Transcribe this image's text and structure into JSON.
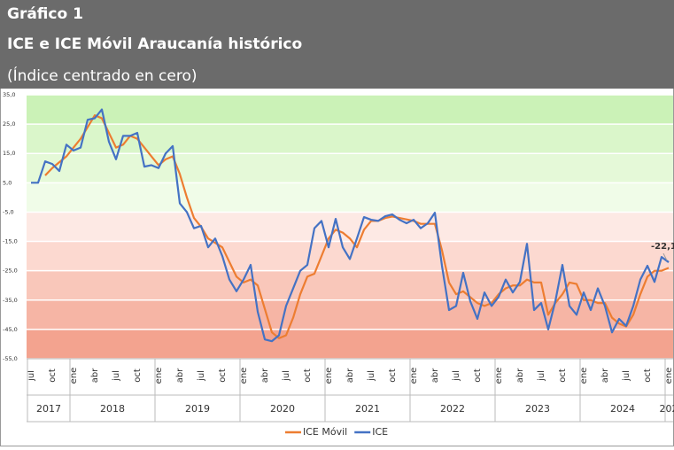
{
  "chart_data": {
    "type": "line",
    "title": "Gráfico 1",
    "subtitle": "ICE e ICE Móvil Araucanía histórico",
    "note": "(Índice centrado en cero)",
    "categories": [
      "jul",
      null,
      null,
      "oct",
      null,
      null,
      "ene",
      null,
      null,
      "abr",
      null,
      null,
      "jul",
      null,
      null,
      "oct",
      null,
      null,
      "ene",
      null,
      null,
      "abr",
      null,
      null,
      "jul",
      null,
      null,
      "oct",
      null,
      null,
      "ene",
      null,
      null,
      "abr",
      null,
      null,
      "jul",
      null,
      null,
      "oct",
      null,
      null,
      "ene",
      null,
      null,
      "abr",
      null,
      null,
      "jul",
      null,
      null,
      "oct",
      null,
      null,
      "ene",
      null,
      null,
      "abr",
      null,
      null,
      "jul",
      null,
      null,
      "oct",
      null,
      null,
      "ene",
      null,
      null,
      "abr",
      null,
      null,
      "jul",
      null,
      null,
      "oct",
      null,
      null,
      "ene",
      null,
      null,
      "abr",
      null,
      null,
      "jul",
      null,
      null,
      "oct",
      null,
      null,
      "ene"
    ],
    "years": [
      "2017",
      "2018",
      "2019",
      "2020",
      "2021",
      "2022",
      "2023",
      "2024",
      "202"
    ],
    "series": [
      {
        "name": "ICE Móvil",
        "color": "#ed7d31",
        "values": [
          null,
          null,
          7.5,
          10,
          12,
          14,
          17,
          20,
          24,
          28,
          27,
          22,
          17,
          18,
          21,
          20,
          17,
          14,
          11,
          13,
          14,
          8,
          0,
          -7,
          -10,
          -14,
          -15.5,
          -17,
          -22,
          -27,
          -29,
          -28,
          -30,
          -38,
          -46,
          -48,
          -47,
          -41,
          -33,
          -27,
          -26,
          -20,
          -14,
          -11,
          -12,
          -14,
          -17,
          -11,
          -8,
          -8,
          -7,
          -6.5,
          -7,
          -7.5,
          -8,
          -9,
          -9,
          -9,
          -18,
          -29,
          -33,
          -32,
          -34,
          -36,
          -37,
          -36,
          -33,
          -31,
          -30,
          -30,
          -28,
          -29,
          -29,
          -40,
          -36,
          -33,
          -29,
          -29.5,
          -35,
          -35,
          -36,
          -36,
          -41,
          -43,
          -44,
          -40,
          -33,
          -27,
          -25,
          -25,
          -24
        ]
      },
      {
        "name": "ICE",
        "color": "#4472c4",
        "values": [
          5,
          5,
          12.3,
          11.4,
          9,
          18,
          16,
          17,
          26.5,
          27,
          30,
          19,
          13,
          21,
          21,
          22,
          10.5,
          11,
          10,
          15,
          17.5,
          -2,
          -5,
          -10.5,
          -9.7,
          -17,
          -14,
          -20,
          -28,
          -32,
          -28,
          -23,
          -39,
          -48.4,
          -49,
          -47,
          -37,
          -31,
          -25,
          -23,
          -10.5,
          -8,
          -17,
          -7.3,
          -17,
          -21,
          -14,
          -6.7,
          -7.6,
          -8,
          -6.4,
          -5.8,
          -7.6,
          -8.8,
          -7.6,
          -10.5,
          -8.8,
          -5.2,
          -23.3,
          -38.4,
          -37,
          -25.7,
          -35.4,
          -41.4,
          -32.4,
          -37,
          -33.9,
          -28,
          -32.4,
          -28.8,
          -15.8,
          -38.4,
          -36,
          -45,
          -35.4,
          -23,
          -37,
          -40,
          -32.4,
          -38.4,
          -31,
          -37,
          -46,
          -41.4,
          -43.8,
          -37,
          -28,
          -23.3,
          -28.8,
          -20.3,
          -22.1
        ],
        "value_labels": [
          null,
          null,
          null,
          null,
          null,
          null,
          null,
          null,
          null,
          null,
          null,
          null,
          null,
          null,
          null,
          null,
          null,
          null,
          null,
          null,
          null,
          null,
          null,
          null,
          null,
          null,
          null,
          null,
          null,
          null,
          null,
          null,
          null,
          null,
          null,
          null,
          null,
          null,
          null,
          null,
          null,
          null,
          null,
          null,
          null,
          null,
          null,
          null,
          null,
          null,
          null,
          null,
          null,
          null,
          null,
          null,
          null,
          null,
          null,
          null,
          null,
          null,
          null,
          null,
          null,
          null,
          null,
          null,
          null,
          null,
          null,
          null,
          null,
          null,
          null,
          null,
          null,
          null,
          null,
          null,
          null,
          null,
          null,
          null,
          null,
          null,
          null,
          null,
          null,
          null,
          "-22,1"
        ]
      }
    ],
    "ylim": [
      -55,
      35
    ],
    "yticks": [
      {
        "value": 35,
        "label": "35,0"
      },
      {
        "value": 25,
        "label": "25,0"
      },
      {
        "value": 15,
        "label": "15,0"
      },
      {
        "value": 5,
        "label": "5,0"
      },
      {
        "value": -5,
        "label": "-5,0"
      },
      {
        "value": -15,
        "label": "-15,0"
      },
      {
        "value": -25,
        "label": "-25,0"
      },
      {
        "value": -35,
        "label": "-35,0"
      },
      {
        "value": -45,
        "label": "-45,0"
      },
      {
        "value": -55,
        "label": "-55,0"
      }
    ],
    "grid": true,
    "legend": "bottom"
  }
}
